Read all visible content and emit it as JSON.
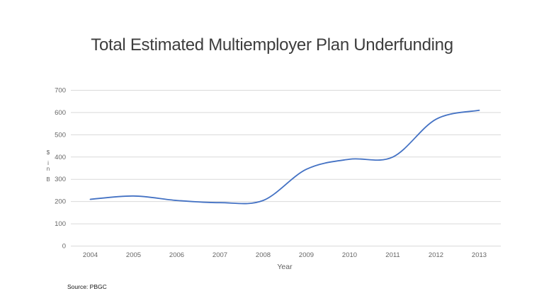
{
  "slide": {
    "source": "Source: PBGC"
  },
  "chart_data": {
    "type": "line",
    "title": "Total Estimated Multiemployer Plan Underfunding",
    "categories": [
      "2004",
      "2005",
      "2006",
      "2007",
      "2008",
      "2009",
      "2010",
      "2011",
      "2012",
      "2013"
    ],
    "values": [
      210,
      225,
      205,
      195,
      205,
      345,
      390,
      400,
      570,
      610
    ],
    "xlabel": "Year",
    "ylabel": "$ in B",
    "ylim": [
      0,
      700
    ],
    "ytick_interval": 100,
    "yticks": [
      "0",
      "100",
      "200",
      "300",
      "400",
      "500",
      "600",
      "700"
    ],
    "grid": "horizontal",
    "legend": "none",
    "smooth": true,
    "colors": {
      "line": "#4472C4",
      "gridline": "#D9D9D9",
      "axis_text": "#666666",
      "title_text": "#3d3d3d"
    }
  }
}
